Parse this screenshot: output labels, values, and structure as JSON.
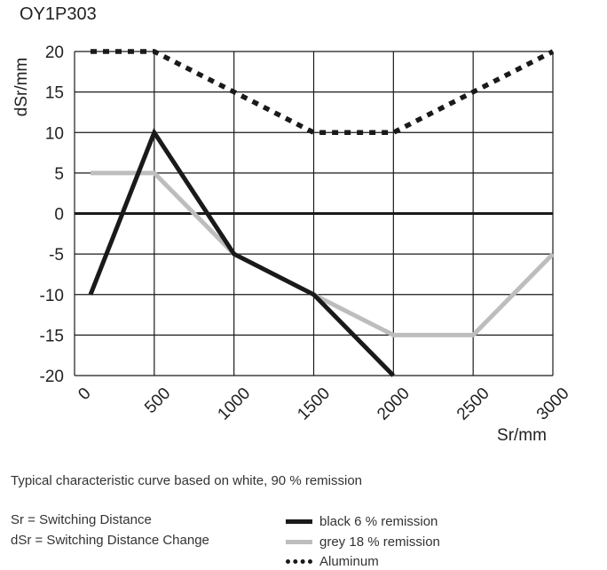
{
  "chart_data": {
    "type": "line",
    "title": "OY1P303",
    "xlabel": "Sr/mm",
    "ylabel": "dSr/mm",
    "xlim": [
      0,
      3000
    ],
    "ylim": [
      -20,
      20
    ],
    "x_ticks": [
      "0",
      "500",
      "1000",
      "1500",
      "2000",
      "2500",
      "3000"
    ],
    "y_ticks": [
      "20",
      "15",
      "10",
      "5",
      "0",
      "-5",
      "-10",
      "-15",
      "-20"
    ],
    "grid": true,
    "series": [
      {
        "name": "black 6 % remission",
        "color": "#1a1a1a",
        "style": "solid",
        "x": [
          100,
          500,
          1000,
          1500,
          2000
        ],
        "y": [
          -10,
          10,
          -5,
          -10,
          -20
        ]
      },
      {
        "name": "grey 18 % remission",
        "color": "#bdbdbd",
        "style": "solid",
        "x": [
          100,
          500,
          1000,
          1500,
          2000,
          2500,
          3000
        ],
        "y": [
          5,
          5,
          -5,
          -10,
          -15,
          -15,
          -5
        ]
      },
      {
        "name": "Aluminum",
        "color": "#1a1a1a",
        "style": "dotted",
        "x": [
          100,
          500,
          1000,
          1500,
          2000,
          2500,
          3000
        ],
        "y": [
          20,
          20,
          15,
          10,
          10,
          15,
          20
        ]
      }
    ]
  },
  "notes": {
    "caption": "Typical characteristic curve based on white, 90 % remission",
    "sr_definition": "Sr = Switching Distance",
    "dsr_definition": "dSr = Switching Distance Change"
  }
}
